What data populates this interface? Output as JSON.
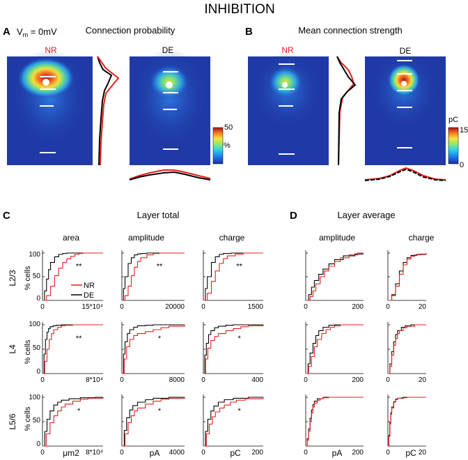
{
  "figure": {
    "title": "INHIBITION",
    "colors": {
      "nr": "#e0201b",
      "de": "#000000",
      "bar": "#ffffff",
      "map_bg": "#1f3aa6"
    },
    "panel_A": {
      "letter": "A",
      "vm_label": "V",
      "vm_sub": "m",
      "vm_value": " = 0mV",
      "title": "Connection probability",
      "nr_label": "NR",
      "de_label": "DE",
      "colorbar_max": "50",
      "colorbar_unit": "%"
    },
    "panel_B": {
      "letter": "B",
      "title": "Mean connection strength",
      "nr_label": "NR",
      "de_label": "DE",
      "colorbar_unit": "pC",
      "colorbar_max": "15",
      "colorbar_min": "0"
    },
    "panel_C": {
      "letter": "C",
      "title": "Layer total",
      "columns": [
        "area",
        "amplitude",
        "charge"
      ],
      "legend": {
        "nr": "NR",
        "de": "DE"
      },
      "units": [
        "μm2",
        "pA",
        "pC"
      ]
    },
    "panel_D": {
      "letter": "D",
      "title": "Layer average",
      "columns": [
        "amplitude",
        "charge"
      ],
      "units": [
        "pA",
        "pC"
      ]
    },
    "rows": [
      {
        "label": "L2/3",
        "ylabel": "% cells"
      },
      {
        "label": "L4",
        "ylabel": "% cells"
      },
      {
        "label": "L5/6",
        "ylabel": "% cells"
      }
    ],
    "y_ticks": [
      "100",
      "50",
      "0"
    ]
  },
  "chart_data": [
    {
      "type": "line",
      "title": "L2/3 area",
      "xlabel": "",
      "ylabel": "% cells",
      "xlim": [
        0,
        150000
      ],
      "x_tick_labels": [
        "0",
        "15*10^4"
      ],
      "significance": "**",
      "series": [
        {
          "name": "NR",
          "x": [
            0,
            10000,
            20000,
            30000,
            40000,
            50000,
            60000,
            70000,
            80000,
            90000,
            100000
          ],
          "y": [
            0,
            10,
            30,
            52,
            68,
            80,
            88,
            93,
            97,
            99,
            100
          ]
        },
        {
          "name": "DE",
          "x": [
            0,
            5000,
            10000,
            15000,
            20000,
            30000,
            40000,
            50000,
            60000,
            70000
          ],
          "y": [
            0,
            20,
            45,
            65,
            80,
            92,
            97,
            99,
            100,
            100
          ]
        }
      ]
    },
    {
      "type": "line",
      "title": "L2/3 amplitude",
      "ylabel": "% cells",
      "xlim": [
        0,
        20000
      ],
      "x_tick_labels": [
        "0",
        "20000"
      ],
      "significance": "**",
      "series": [
        {
          "name": "NR",
          "x": [
            0,
            1000,
            2000,
            3000,
            4000,
            5000,
            6000,
            8000,
            10000,
            12000
          ],
          "y": [
            0,
            10,
            30,
            52,
            70,
            82,
            90,
            96,
            99,
            100
          ]
        },
        {
          "name": "DE",
          "x": [
            0,
            500,
            1000,
            2000,
            3000,
            4000,
            5000,
            6000,
            8000
          ],
          "y": [
            0,
            25,
            50,
            78,
            90,
            96,
            98,
            99,
            100
          ]
        }
      ]
    },
    {
      "type": "line",
      "title": "L2/3 charge",
      "ylabel": "% cells",
      "xlim": [
        0,
        1500
      ],
      "x_tick_labels": [
        "0",
        "1500"
      ],
      "significance": "**",
      "series": [
        {
          "name": "NR",
          "x": [
            0,
            100,
            200,
            300,
            400,
            500,
            600,
            800,
            1000
          ],
          "y": [
            0,
            15,
            40,
            62,
            78,
            88,
            94,
            98,
            100
          ]
        },
        {
          "name": "DE",
          "x": [
            0,
            50,
            100,
            200,
            300,
            400,
            500,
            700
          ],
          "y": [
            0,
            25,
            50,
            80,
            92,
            97,
            99,
            100
          ]
        }
      ]
    },
    {
      "type": "line",
      "title": "L4 area",
      "ylabel": "% cells",
      "xlim": [
        0,
        80000
      ],
      "x_tick_labels": [
        "0",
        "8*10^4"
      ],
      "significance": "**",
      "series": [
        {
          "name": "NR",
          "x": [
            0,
            3000,
            6000,
            9000,
            12000,
            15000,
            20000,
            25000,
            30000,
            40000
          ],
          "y": [
            0,
            25,
            50,
            70,
            82,
            90,
            95,
            98,
            99,
            100
          ]
        },
        {
          "name": "DE",
          "x": [
            0,
            2000,
            4000,
            6000,
            8000,
            10000,
            14000,
            18000,
            25000
          ],
          "y": [
            0,
            40,
            70,
            85,
            92,
            96,
            98,
            99,
            100
          ]
        }
      ]
    },
    {
      "type": "line",
      "title": "L4 amplitude",
      "ylabel": "% cells",
      "xlim": [
        0,
        8000
      ],
      "x_tick_labels": [
        "0",
        "8000"
      ],
      "significance": "*",
      "series": [
        {
          "name": "NR",
          "x": [
            0,
            300,
            600,
            1000,
            1500,
            2000,
            3000,
            4000,
            5000,
            6000,
            8000
          ],
          "y": [
            0,
            30,
            55,
            70,
            78,
            82,
            86,
            90,
            94,
            97,
            100
          ]
        },
        {
          "name": "DE",
          "x": [
            0,
            200,
            400,
            700,
            1000,
            1500,
            2000,
            3000,
            4000
          ],
          "y": [
            0,
            40,
            65,
            82,
            90,
            95,
            98,
            99,
            100
          ]
        }
      ]
    },
    {
      "type": "line",
      "title": "L4 charge",
      "ylabel": "% cells",
      "xlim": [
        0,
        400
      ],
      "x_tick_labels": [
        "0",
        "400"
      ],
      "significance": "*",
      "series": [
        {
          "name": "NR",
          "x": [
            0,
            15,
            30,
            50,
            75,
            100,
            150,
            200,
            250,
            300,
            400
          ],
          "y": [
            0,
            30,
            52,
            68,
            76,
            82,
            88,
            92,
            96,
            98,
            100
          ]
        },
        {
          "name": "DE",
          "x": [
            0,
            10,
            20,
            35,
            50,
            75,
            100,
            150,
            200
          ],
          "y": [
            0,
            38,
            62,
            80,
            88,
            94,
            97,
            99,
            100
          ]
        }
      ]
    },
    {
      "type": "line",
      "title": "L5/6 area",
      "ylabel": "% cells",
      "xlim": [
        0,
        80000
      ],
      "x_tick_labels": [
        "0",
        "8*10^4"
      ],
      "significance": "*",
      "series": [
        {
          "name": "NR",
          "x": [
            0,
            5000,
            10000,
            15000,
            20000,
            25000,
            30000,
            40000,
            50000,
            60000,
            80000
          ],
          "y": [
            0,
            25,
            48,
            62,
            72,
            80,
            86,
            92,
            96,
            98,
            100
          ]
        },
        {
          "name": "DE",
          "x": [
            0,
            3000,
            6000,
            10000,
            15000,
            20000,
            25000,
            35000,
            50000,
            70000
          ],
          "y": [
            0,
            30,
            55,
            72,
            84,
            90,
            94,
            97,
            99,
            100
          ]
        }
      ]
    },
    {
      "type": "line",
      "title": "L5/6 amplitude",
      "ylabel": "% cells",
      "xlim": [
        0,
        4000
      ],
      "x_tick_labels": [
        "0",
        "4000"
      ],
      "significance": "*",
      "series": [
        {
          "name": "NR",
          "x": [
            0,
            200,
            400,
            600,
            800,
            1000,
            1500,
            2000,
            2500,
            3000,
            4000
          ],
          "y": [
            0,
            25,
            48,
            62,
            72,
            78,
            86,
            92,
            96,
            98,
            100
          ]
        },
        {
          "name": "DE",
          "x": [
            0,
            150,
            300,
            500,
            700,
            1000,
            1500,
            2000,
            3000
          ],
          "y": [
            0,
            32,
            58,
            74,
            83,
            90,
            95,
            98,
            100
          ]
        }
      ]
    },
    {
      "type": "line",
      "title": "L5/6 charge",
      "ylabel": "% cells",
      "xlim": [
        0,
        200
      ],
      "x_tick_labels": [
        "0",
        "200"
      ],
      "significance": "*",
      "series": [
        {
          "name": "NR",
          "x": [
            0,
            10,
            20,
            30,
            40,
            55,
            70,
            90,
            110,
            140,
            200
          ],
          "y": [
            0,
            25,
            45,
            60,
            70,
            78,
            84,
            90,
            94,
            97,
            100
          ]
        },
        {
          "name": "DE",
          "x": [
            0,
            7,
            15,
            25,
            35,
            50,
            70,
            100,
            150
          ],
          "y": [
            0,
            30,
            55,
            72,
            82,
            90,
            95,
            98,
            100
          ]
        }
      ]
    },
    {
      "type": "line",
      "title": "L2/3 average amplitude",
      "ylabel": "% cells",
      "xlim": [
        0,
        200
      ],
      "x_tick_labels": [
        "0",
        "200"
      ],
      "series": [
        {
          "name": "NR",
          "x": [
            0,
            15,
            25,
            35,
            50,
            65,
            80,
            100,
            120,
            150,
            180
          ],
          "y": [
            0,
            8,
            20,
            35,
            50,
            62,
            72,
            82,
            90,
            96,
            100
          ]
        },
        {
          "name": "DE",
          "x": [
            0,
            10,
            20,
            30,
            45,
            60,
            80,
            100,
            130,
            170
          ],
          "y": [
            0,
            12,
            28,
            42,
            55,
            66,
            77,
            86,
            94,
            98
          ]
        }
      ]
    },
    {
      "type": "line",
      "title": "L2/3 average charge",
      "ylabel": "% cells",
      "xlim": [
        0,
        20
      ],
      "x_tick_labels": [
        "0",
        "20"
      ],
      "series": [
        {
          "name": "NR",
          "x": [
            0,
            2,
            4,
            6,
            8,
            10,
            12,
            14,
            17,
            20
          ],
          "y": [
            0,
            10,
            30,
            55,
            75,
            87,
            93,
            96,
            98,
            100
          ]
        },
        {
          "name": "DE",
          "x": [
            0,
            2,
            4,
            6,
            8,
            10,
            12,
            15,
            20
          ],
          "y": [
            0,
            12,
            35,
            62,
            80,
            90,
            95,
            97,
            97
          ]
        }
      ]
    },
    {
      "type": "line",
      "title": "L4 average amplitude",
      "ylabel": "% cells",
      "xlim": [
        0,
        200
      ],
      "x_tick_labels": [
        "0",
        "200"
      ],
      "series": [
        {
          "name": "NR",
          "x": [
            0,
            10,
            20,
            30,
            40,
            55,
            70,
            85,
            100,
            120
          ],
          "y": [
            0,
            15,
            35,
            55,
            70,
            82,
            90,
            95,
            98,
            100
          ]
        },
        {
          "name": "DE",
          "x": [
            0,
            8,
            15,
            25,
            35,
            45,
            60,
            80,
            100
          ],
          "y": [
            0,
            20,
            42,
            62,
            78,
            88,
            95,
            99,
            100
          ]
        }
      ]
    },
    {
      "type": "line",
      "title": "L4 average charge",
      "ylabel": "% cells",
      "xlim": [
        0,
        20
      ],
      "x_tick_labels": [
        "0",
        "20"
      ],
      "series": [
        {
          "name": "NR",
          "x": [
            0,
            1,
            2,
            3,
            4,
            5,
            6,
            8,
            10,
            14
          ],
          "y": [
            0,
            15,
            38,
            58,
            72,
            82,
            88,
            94,
            97,
            100
          ]
        },
        {
          "name": "DE",
          "x": [
            0,
            1,
            2,
            3,
            4,
            5,
            7,
            9,
            12
          ],
          "y": [
            0,
            20,
            45,
            65,
            80,
            88,
            95,
            98,
            100
          ]
        }
      ]
    },
    {
      "type": "line",
      "title": "L5/6 average amplitude",
      "ylabel": "% cells",
      "xlim": [
        0,
        200
      ],
      "x_tick_labels": [
        "0",
        "200"
      ],
      "series": [
        {
          "name": "NR",
          "x": [
            0,
            5,
            10,
            15,
            20,
            25,
            30,
            40,
            50,
            60,
            80
          ],
          "y": [
            0,
            12,
            30,
            50,
            68,
            80,
            88,
            94,
            97,
            99,
            100
          ]
        },
        {
          "name": "DE",
          "x": [
            0,
            5,
            10,
            15,
            20,
            25,
            30,
            40,
            60
          ],
          "y": [
            0,
            15,
            35,
            57,
            74,
            85,
            92,
            97,
            100
          ]
        }
      ]
    },
    {
      "type": "line",
      "title": "L5/6 average charge",
      "ylabel": "% cells",
      "xlim": [
        0,
        20
      ],
      "x_tick_labels": [
        "0",
        "20"
      ],
      "series": [
        {
          "name": "NR",
          "x": [
            0,
            0.5,
            1,
            1.5,
            2,
            3,
            4,
            5,
            7,
            10
          ],
          "y": [
            0,
            20,
            45,
            65,
            78,
            90,
            95,
            98,
            99,
            100
          ]
        },
        {
          "name": "DE",
          "x": [
            0,
            0.5,
            1,
            1.5,
            2,
            3,
            4,
            5,
            8
          ],
          "y": [
            0,
            22,
            48,
            68,
            80,
            91,
            96,
            98,
            100
          ]
        }
      ]
    }
  ]
}
